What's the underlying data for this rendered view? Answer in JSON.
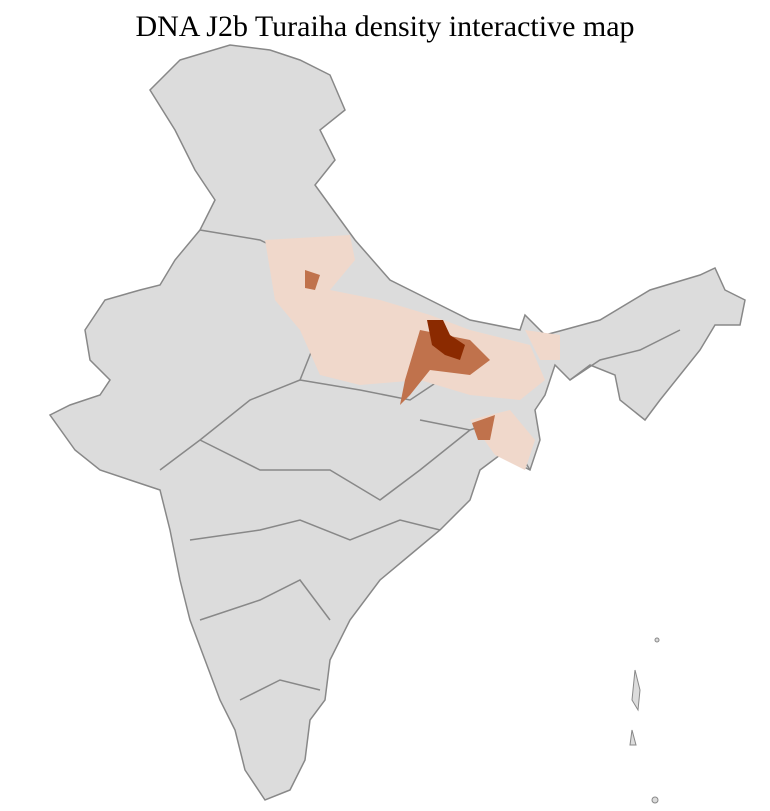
{
  "title": "DNA J2b Turaiha density interactive map",
  "colors": {
    "base": "#dcdcdc",
    "state_border": "#888888",
    "district_border": "#ffffff",
    "density_low": "#f0d8cb",
    "density_mid": "#c0724c",
    "density_high": "#8b2a00"
  }
}
